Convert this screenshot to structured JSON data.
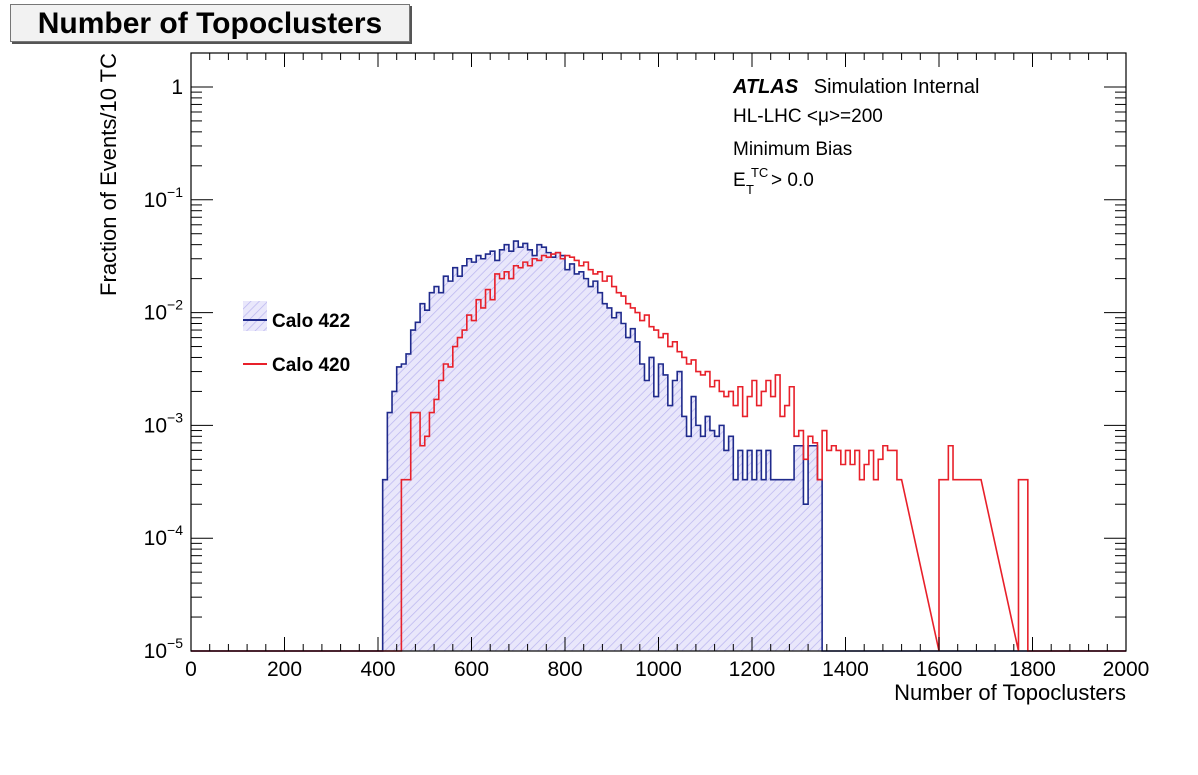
{
  "page": {
    "title": "Number of Topoclusters"
  },
  "labels": {
    "experiment": "ATLAS",
    "status": "Simulation Internal",
    "conditions": "HL-LHC <μ>=200",
    "sample": "Minimum Bias",
    "cut_base": "E",
    "cut_sup": "TC",
    "cut_sub": "T",
    "cut_rest": "> 0.0"
  },
  "colors": {
    "series_422": "#1f2a8c",
    "series_420": "#e8202a",
    "fill_422": "#c9c6f2"
  },
  "chart_data": {
    "type": "line",
    "title": "Number of Topoclusters",
    "xlabel": "Number of Topoclusters",
    "ylabel": "Fraction of Events/10 TC",
    "xlim": [
      0,
      2000
    ],
    "ylim": [
      1e-05,
      2
    ],
    "yscale": "log",
    "grid": false,
    "legend_position": "left-middle",
    "x_ticks": [
      "0",
      "200",
      "400",
      "600",
      "800",
      "1000",
      "1200",
      "1400",
      "1600",
      "1800",
      "2000"
    ],
    "y_ticks": [
      {
        "base": "10",
        "exp": "−5",
        "value": 1e-05
      },
      {
        "base": "10",
        "exp": "−4",
        "value": 0.0001
      },
      {
        "base": "10",
        "exp": "−3",
        "value": 0.001
      },
      {
        "base": "10",
        "exp": "−2",
        "value": 0.01
      },
      {
        "base": "10",
        "exp": "−1",
        "value": 0.1
      },
      {
        "base": "1",
        "exp": "",
        "value": 1
      }
    ],
    "bin_width": 10,
    "series": [
      {
        "name": "Calo 422",
        "bins": [
          [
            410,
            0.00033
          ],
          [
            420,
            0.0013
          ],
          [
            430,
            0.002
          ],
          [
            440,
            0.0033
          ],
          [
            450,
            0.0035
          ],
          [
            460,
            0.0043
          ],
          [
            470,
            0.007
          ],
          [
            480,
            0.0082
          ],
          [
            490,
            0.012
          ],
          [
            500,
            0.0105
          ],
          [
            510,
            0.015
          ],
          [
            520,
            0.017
          ],
          [
            530,
            0.015
          ],
          [
            540,
            0.021
          ],
          [
            550,
            0.019
          ],
          [
            560,
            0.025
          ],
          [
            570,
            0.021
          ],
          [
            580,
            0.026
          ],
          [
            590,
            0.03
          ],
          [
            600,
            0.028
          ],
          [
            610,
            0.032
          ],
          [
            620,
            0.03
          ],
          [
            630,
            0.033
          ],
          [
            640,
            0.035
          ],
          [
            650,
            0.029
          ],
          [
            660,
            0.036
          ],
          [
            670,
            0.04
          ],
          [
            680,
            0.035
          ],
          [
            690,
            0.043
          ],
          [
            700,
            0.038
          ],
          [
            710,
            0.041
          ],
          [
            720,
            0.036
          ],
          [
            730,
            0.032
          ],
          [
            740,
            0.04
          ],
          [
            750,
            0.038
          ],
          [
            760,
            0.034
          ],
          [
            770,
            0.031
          ],
          [
            780,
            0.034
          ],
          [
            790,
            0.032
          ],
          [
            800,
            0.024
          ],
          [
            810,
            0.027
          ],
          [
            820,
            0.022
          ],
          [
            830,
            0.023
          ],
          [
            840,
            0.02
          ],
          [
            850,
            0.017
          ],
          [
            860,
            0.019
          ],
          [
            870,
            0.015
          ],
          [
            880,
            0.012
          ],
          [
            890,
            0.011
          ],
          [
            900,
            0.009
          ],
          [
            910,
            0.01
          ],
          [
            920,
            0.008
          ],
          [
            930,
            0.006
          ],
          [
            940,
            0.0072
          ],
          [
            950,
            0.0055
          ],
          [
            960,
            0.0035
          ],
          [
            970,
            0.0025
          ],
          [
            980,
            0.004
          ],
          [
            990,
            0.0018
          ],
          [
            1000,
            0.0035
          ],
          [
            1010,
            0.0028
          ],
          [
            1020,
            0.0015
          ],
          [
            1030,
            0.0025
          ],
          [
            1040,
            0.003
          ],
          [
            1050,
            0.0012
          ],
          [
            1060,
            0.0008
          ],
          [
            1070,
            0.0018
          ],
          [
            1080,
            0.001
          ],
          [
            1090,
            0.0008
          ],
          [
            1100,
            0.0012
          ],
          [
            1110,
            0.0009
          ],
          [
            1120,
            0.0008
          ],
          [
            1130,
            0.001
          ],
          [
            1140,
            0.0006
          ],
          [
            1150,
            0.0008
          ],
          [
            1160,
            0.00033
          ],
          [
            1170,
            0.0006
          ],
          [
            1180,
            0.00033
          ],
          [
            1190,
            0.0006
          ],
          [
            1200,
            0.00033
          ],
          [
            1210,
            0.0006
          ],
          [
            1220,
            0.00033
          ],
          [
            1230,
            0.0006
          ],
          [
            1240,
            0.00033
          ],
          [
            1250,
            0.00033
          ],
          [
            1260,
            0.00033
          ],
          [
            1270,
            0.00033
          ],
          [
            1280,
            0.00033
          ],
          [
            1290,
            0.00066
          ],
          [
            1300,
            0.00066
          ],
          [
            1310,
            0.0002
          ],
          [
            1320,
            0.00066
          ],
          [
            1330,
            0.00066
          ],
          [
            1340,
            0.00033
          ]
        ]
      },
      {
        "name": "Calo 420",
        "bins": [
          [
            450,
            0.00033
          ],
          [
            460,
            0.00033
          ],
          [
            470,
            0.0013
          ],
          [
            480,
            0.0013
          ],
          [
            490,
            0.00066
          ],
          [
            500,
            0.0008
          ],
          [
            510,
            0.0013
          ],
          [
            520,
            0.0017
          ],
          [
            530,
            0.0025
          ],
          [
            540,
            0.0035
          ],
          [
            550,
            0.0033
          ],
          [
            560,
            0.005
          ],
          [
            570,
            0.006
          ],
          [
            580,
            0.007
          ],
          [
            590,
            0.0095
          ],
          [
            600,
            0.0085
          ],
          [
            610,
            0.013
          ],
          [
            620,
            0.011
          ],
          [
            630,
            0.016
          ],
          [
            640,
            0.013
          ],
          [
            650,
            0.022
          ],
          [
            660,
            0.02
          ],
          [
            670,
            0.023
          ],
          [
            680,
            0.02
          ],
          [
            690,
            0.026
          ],
          [
            700,
            0.025
          ],
          [
            710,
            0.028
          ],
          [
            720,
            0.026
          ],
          [
            730,
            0.03
          ],
          [
            740,
            0.029
          ],
          [
            750,
            0.032
          ],
          [
            760,
            0.031
          ],
          [
            770,
            0.033
          ],
          [
            780,
            0.034
          ],
          [
            790,
            0.03
          ],
          [
            800,
            0.032
          ],
          [
            810,
            0.031
          ],
          [
            820,
            0.029
          ],
          [
            830,
            0.026
          ],
          [
            840,
            0.028
          ],
          [
            850,
            0.024
          ],
          [
            860,
            0.022
          ],
          [
            870,
            0.023
          ],
          [
            880,
            0.019
          ],
          [
            890,
            0.021
          ],
          [
            900,
            0.017
          ],
          [
            910,
            0.015
          ],
          [
            920,
            0.014
          ],
          [
            930,
            0.012
          ],
          [
            940,
            0.011
          ],
          [
            950,
            0.01
          ],
          [
            960,
            0.0085
          ],
          [
            970,
            0.0095
          ],
          [
            980,
            0.0075
          ],
          [
            990,
            0.007
          ],
          [
            1000,
            0.006
          ],
          [
            1010,
            0.0065
          ],
          [
            1020,
            0.005
          ],
          [
            1030,
            0.0055
          ],
          [
            1040,
            0.0045
          ],
          [
            1050,
            0.004
          ],
          [
            1060,
            0.0035
          ],
          [
            1070,
            0.0038
          ],
          [
            1080,
            0.003
          ],
          [
            1090,
            0.0028
          ],
          [
            1100,
            0.003
          ],
          [
            1110,
            0.0022
          ],
          [
            1120,
            0.0025
          ],
          [
            1130,
            0.002
          ],
          [
            1140,
            0.0018
          ],
          [
            1150,
            0.002
          ],
          [
            1160,
            0.0015
          ],
          [
            1170,
            0.0022
          ],
          [
            1180,
            0.0012
          ],
          [
            1190,
            0.0018
          ],
          [
            1200,
            0.0025
          ],
          [
            1210,
            0.0015
          ],
          [
            1220,
            0.002
          ],
          [
            1230,
            0.0025
          ],
          [
            1240,
            0.0018
          ],
          [
            1250,
            0.0028
          ],
          [
            1260,
            0.0012
          ],
          [
            1270,
            0.0015
          ],
          [
            1280,
            0.0022
          ],
          [
            1290,
            0.0008
          ],
          [
            1300,
            0.0009
          ],
          [
            1310,
            0.0005
          ],
          [
            1320,
            0.0008
          ],
          [
            1330,
            0.0007
          ],
          [
            1340,
            0.00033
          ],
          [
            1350,
            0.0009
          ],
          [
            1360,
            0.0006
          ],
          [
            1370,
            0.00066
          ],
          [
            1380,
            0.0006
          ],
          [
            1390,
            0.00045
          ],
          [
            1400,
            0.0006
          ],
          [
            1410,
            0.00045
          ],
          [
            1420,
            0.0006
          ],
          [
            1430,
            0.00033
          ],
          [
            1440,
            0.00045
          ],
          [
            1450,
            0.0006
          ],
          [
            1460,
            0.00033
          ],
          [
            1470,
            0.0005
          ],
          [
            1480,
            0.00066
          ],
          [
            1490,
            0.0006
          ],
          [
            1500,
            0.0006
          ],
          [
            1510,
            0.00033
          ],
          [
            1600,
            0.00033
          ],
          [
            1610,
            0.00033
          ],
          [
            1620,
            0.00066
          ],
          [
            1630,
            0.00033
          ],
          [
            1640,
            0.00033
          ],
          [
            1650,
            0.00033
          ],
          [
            1660,
            0.00033
          ],
          [
            1670,
            0.00033
          ],
          [
            1680,
            0.00033
          ],
          [
            1770,
            0.00033
          ],
          [
            1780,
            0.00033
          ]
        ]
      }
    ]
  }
}
